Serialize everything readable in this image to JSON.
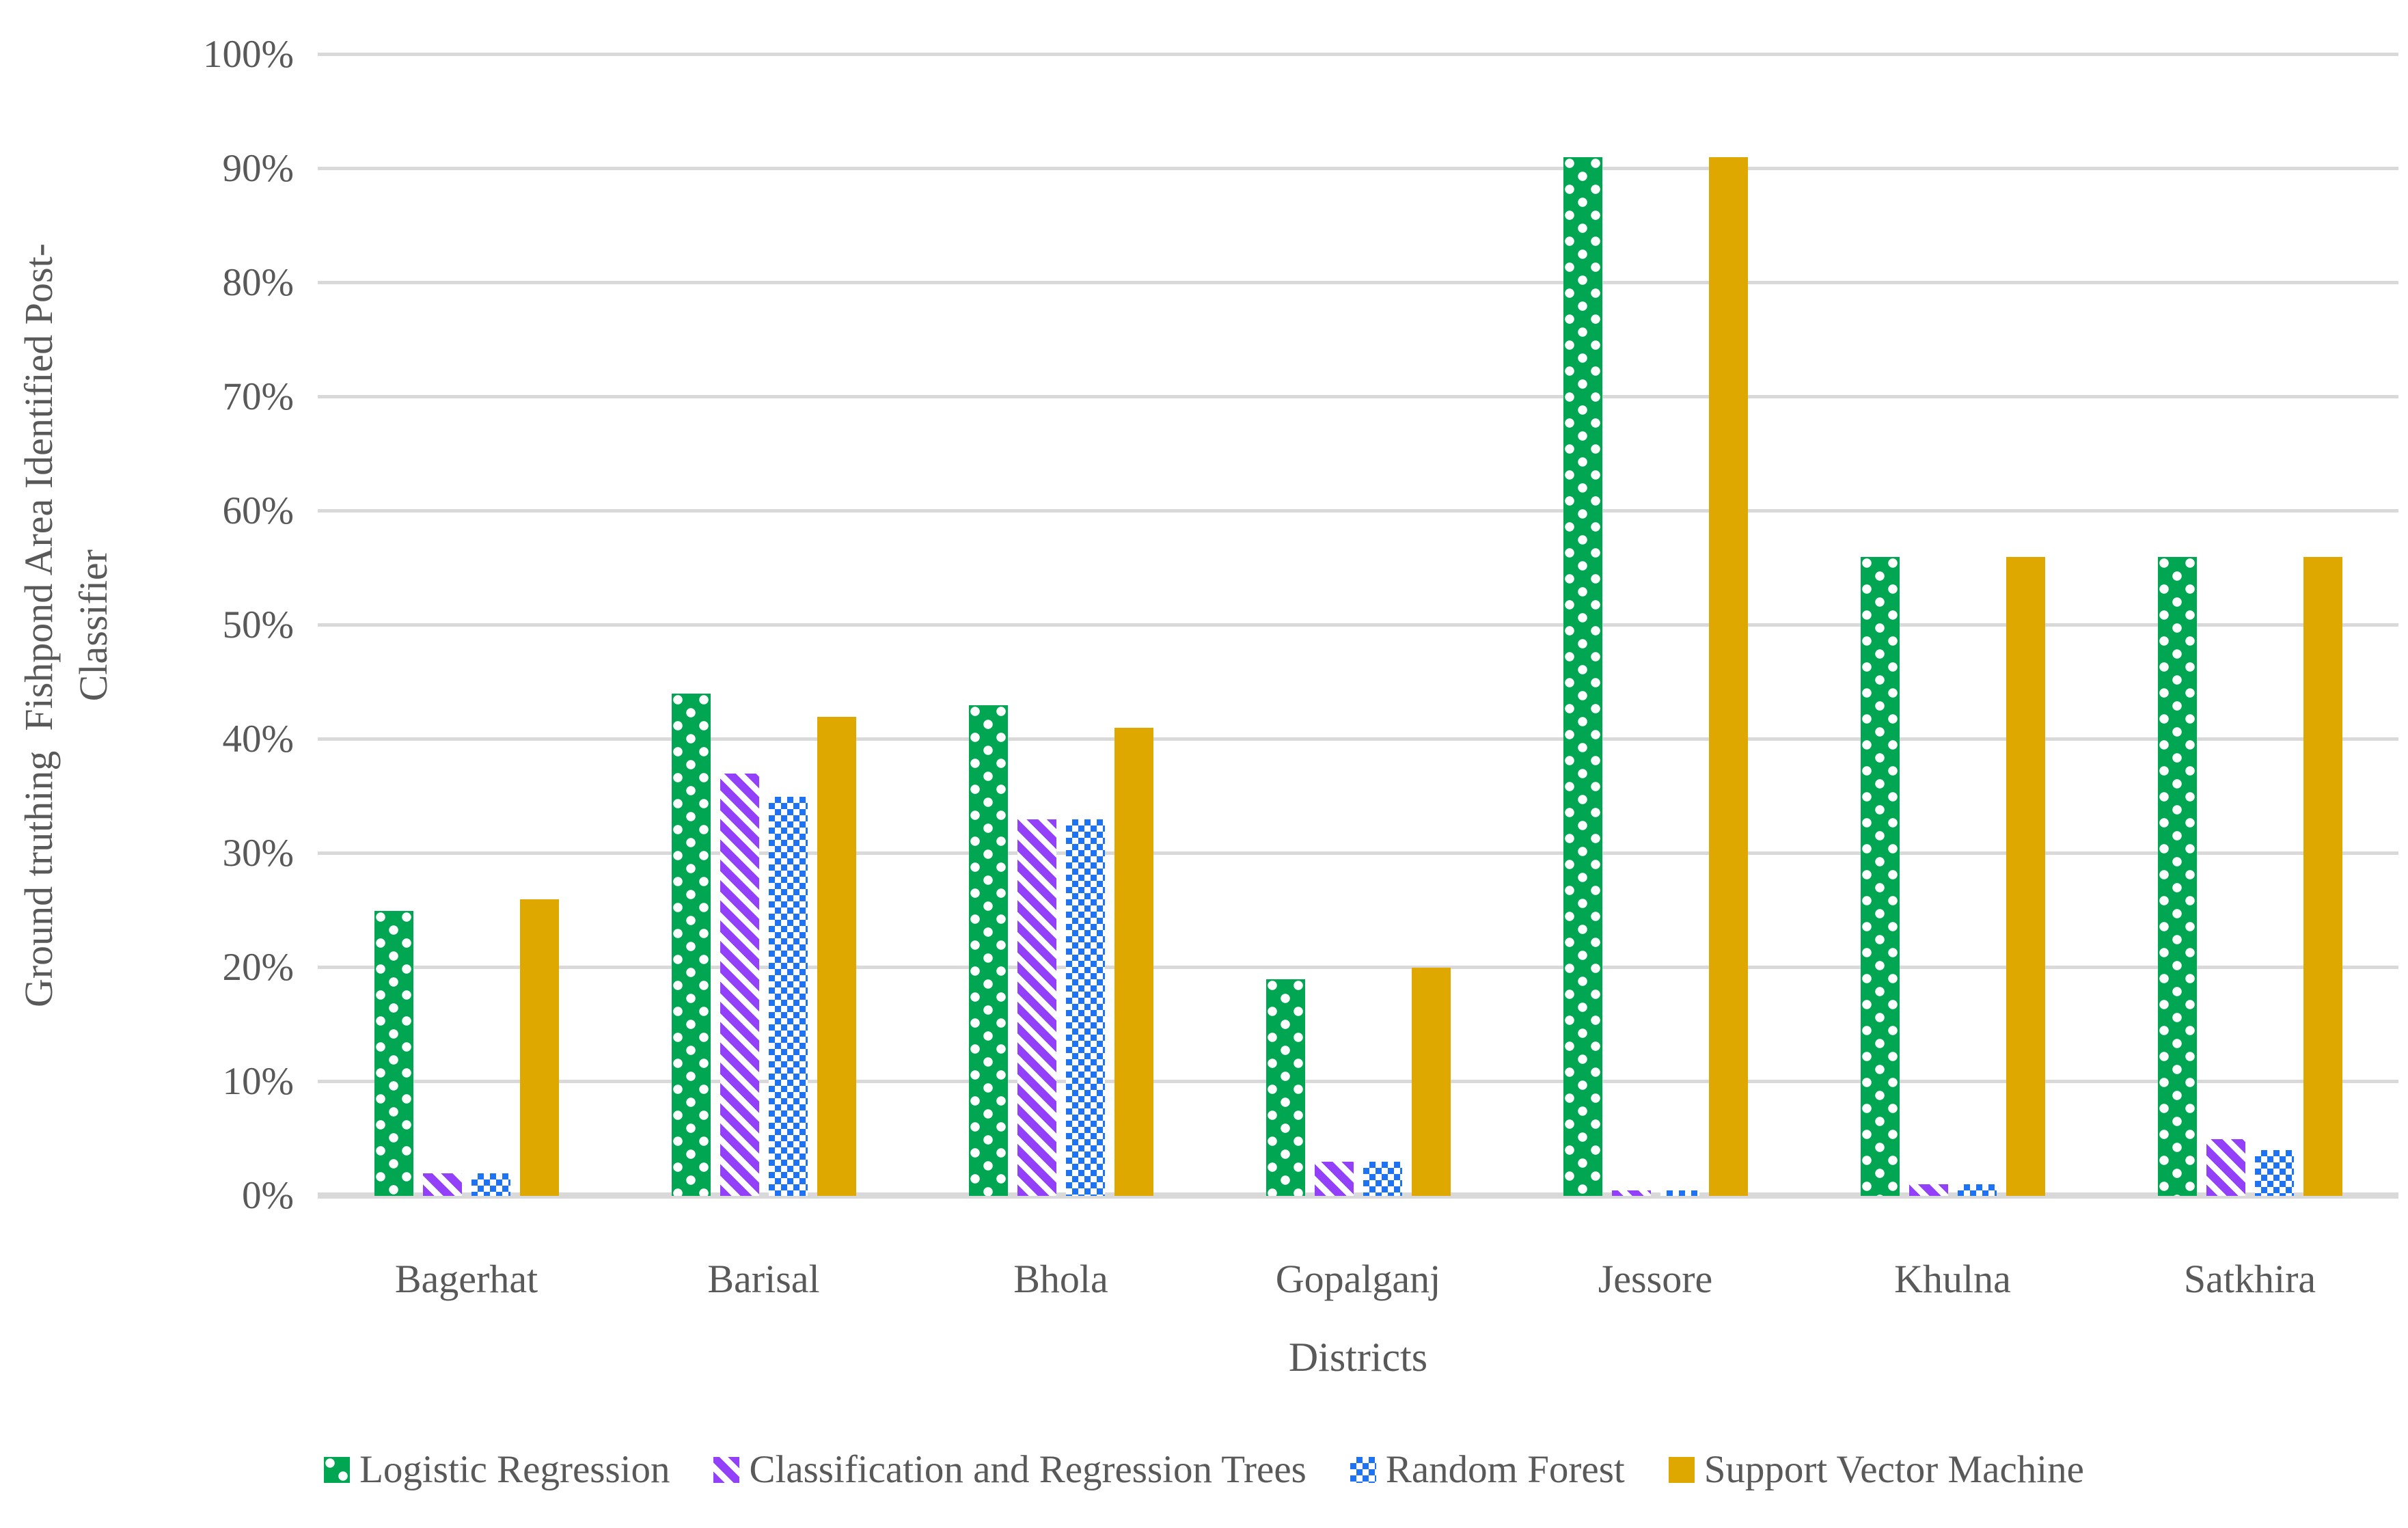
{
  "figure": {
    "background": "#FFFFFF",
    "text_color": "#595959",
    "grid_color": "#D9D9D9"
  },
  "chart_data": {
    "type": "bar",
    "title": "",
    "xlabel": "Districts",
    "ylabel_line1": "Ground truthing  Fishpond Area Identified Post-",
    "ylabel_line2": "Classifier",
    "ylim": [
      0,
      100
    ],
    "ytick_step": 10,
    "yticks": [
      "0%",
      "10%",
      "20%",
      "30%",
      "40%",
      "50%",
      "60%",
      "70%",
      "80%",
      "90%",
      "100%"
    ],
    "grid": "horizontal-only",
    "legend_position": "bottom",
    "categories": [
      "Bagerhat",
      "Barisal",
      "Bhola",
      "Gopalganj",
      "Jessore",
      "Khulna",
      "Satkhira"
    ],
    "series": [
      {
        "name": "Logistic Regression",
        "color": "#00A651",
        "pattern": "white-dots-on-green",
        "values": [
          25,
          44,
          43,
          19,
          91,
          56,
          56
        ]
      },
      {
        "name": "Classification and Regression Trees",
        "color": "#9340FB",
        "pattern": "purple-diagonal-stripes",
        "values": [
          2,
          37,
          33,
          3,
          0.5,
          1,
          5
        ]
      },
      {
        "name": "Random Forest",
        "color": "#1E73F5",
        "pattern": "blue-checkerboard",
        "values": [
          2,
          35,
          33,
          3,
          0.5,
          1,
          4
        ]
      },
      {
        "name": "Support Vector Machine",
        "color": "#DFA800",
        "pattern": "solid-gold",
        "values": [
          26,
          42,
          41,
          20,
          91,
          56,
          56
        ]
      }
    ]
  }
}
